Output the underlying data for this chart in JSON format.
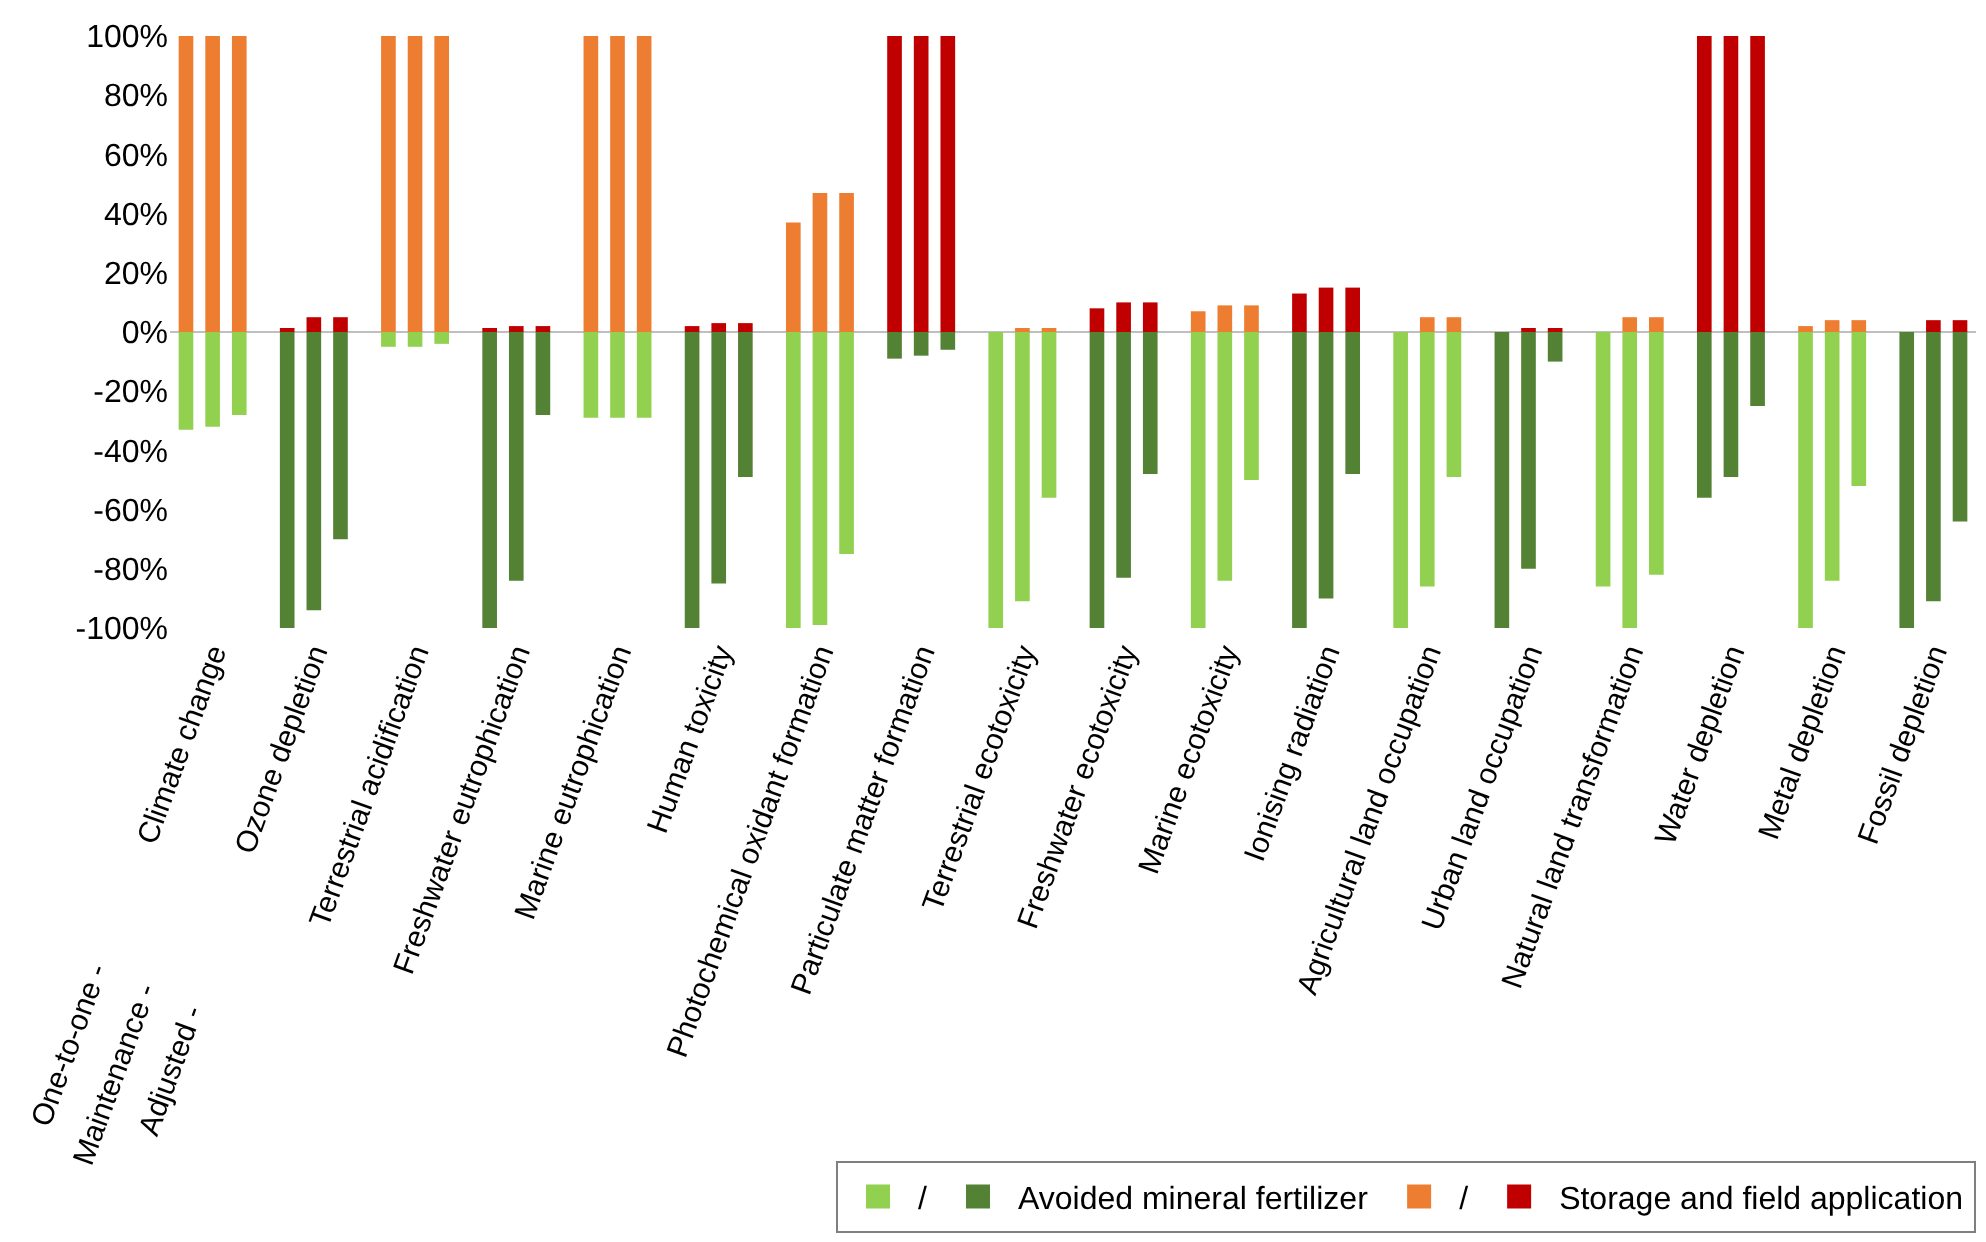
{
  "chart_data": {
    "type": "bar",
    "stacked": true,
    "categories": [
      null,
      "Climate change",
      null,
      null,
      "Ozone depletion",
      null,
      null,
      "Terrestrial acidification",
      null,
      null,
      "Freshwater eutrophication",
      null,
      null,
      "Marine eutrophication",
      null,
      null,
      "Human toxicity",
      null,
      null,
      "Photochemical oxidant formation",
      null,
      null,
      "Particulate matter formation",
      null,
      null,
      "Terrestrial ecotoxicity",
      null,
      null,
      "Freshwater ecotoxicity",
      null,
      null,
      "Marine ecotoxicity",
      null,
      null,
      "Ionising radiation",
      null,
      null,
      "Agricultural land occupation",
      null,
      null,
      "Urban land occupation",
      null,
      null,
      "Natural land transformation",
      null,
      null,
      "Water depletion",
      null,
      null,
      "Metal depletion",
      null,
      null,
      "Fossil depletion",
      null
    ],
    "series": [
      {
        "name": "/",
        "color": "#92d050",
        "values": [
          -33,
          -32,
          -28,
          null,
          null,
          null,
          -5,
          -5,
          -4,
          null,
          null,
          null,
          -29,
          -29,
          -29,
          null,
          null,
          null,
          -100,
          -99,
          -75,
          null,
          null,
          null,
          -100,
          -91,
          -56,
          null,
          null,
          null,
          -100,
          -84,
          -50,
          null,
          null,
          null,
          -100,
          -86,
          -49,
          null,
          null,
          null,
          -86,
          -100,
          -82,
          null,
          null,
          null,
          -100,
          -84,
          -52,
          null,
          null,
          null
        ]
      },
      {
        "name": "Avoided mineral fertilizer",
        "color": "#548235",
        "values": [
          null,
          null,
          null,
          -100,
          -94,
          -70,
          null,
          null,
          null,
          -100,
          -84,
          -28,
          null,
          null,
          null,
          -100,
          -85,
          -49,
          null,
          null,
          null,
          -9,
          -8,
          -6,
          null,
          null,
          null,
          -100,
          -83,
          -48,
          null,
          null,
          null,
          -100,
          -90,
          -48,
          null,
          null,
          null,
          -100,
          -80,
          -10,
          null,
          null,
          null,
          -56,
          -49,
          -25,
          null,
          null,
          null,
          -100,
          -91,
          -64
        ]
      },
      {
        "name": "/",
        "color": "#ed7d31",
        "values": [
          100,
          100,
          100,
          null,
          null,
          null,
          100,
          100,
          100,
          null,
          null,
          null,
          100,
          100,
          100,
          null,
          null,
          null,
          37,
          47,
          47,
          null,
          null,
          null,
          0,
          1,
          1,
          null,
          null,
          null,
          7,
          9,
          9,
          null,
          null,
          null,
          0,
          5,
          5,
          null,
          null,
          null,
          0,
          5,
          5,
          null,
          null,
          null,
          2,
          4,
          4,
          null,
          null,
          null
        ]
      },
      {
        "name": "Storage and field application",
        "color": "#c00000",
        "values": [
          null,
          null,
          null,
          1,
          5,
          5,
          null,
          null,
          null,
          1,
          2,
          2,
          null,
          null,
          null,
          2,
          3,
          3,
          null,
          null,
          null,
          100,
          100,
          100,
          null,
          null,
          null,
          8,
          10,
          10,
          null,
          null,
          null,
          13,
          15,
          15,
          null,
          null,
          null,
          0,
          1,
          1,
          null,
          null,
          null,
          100,
          100,
          100,
          null,
          null,
          null,
          0,
          4,
          4
        ]
      }
    ],
    "ylim": [
      -100,
      100
    ],
    "yticks": [
      {
        "value": -100,
        "label": "-100%"
      },
      {
        "value": -80,
        "label": "-80%"
      },
      {
        "value": -60,
        "label": "-60%"
      },
      {
        "value": -40,
        "label": "-40%"
      },
      {
        "value": -20,
        "label": "-20%"
      },
      {
        "value": 0,
        "label": "0%"
      },
      {
        "value": 20,
        "label": "20%"
      },
      {
        "value": 40,
        "label": "40%"
      },
      {
        "value": 60,
        "label": "60%"
      },
      {
        "value": 80,
        "label": "80%"
      },
      {
        "value": 100,
        "label": "100%"
      }
    ],
    "annotations": [
      "One-to-one -",
      "Maintenance -",
      "Adjusted -"
    ],
    "ref_lines": [
      {
        "axis": "y",
        "value": 0,
        "color": "#bfbfbf"
      }
    ],
    "grid": false,
    "legend": "bottom right"
  }
}
